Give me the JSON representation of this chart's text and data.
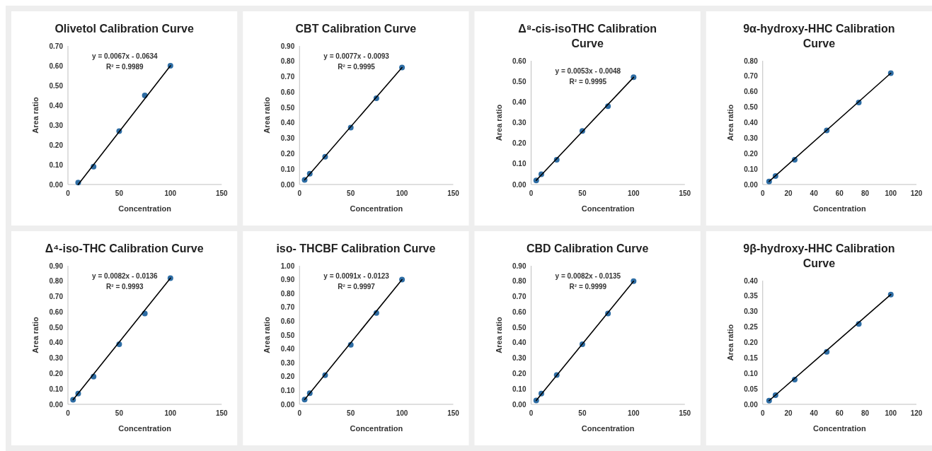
{
  "chart_data": [
    {
      "type": "scatter",
      "title": "Olivetol Calibration Curve",
      "xlabel": "Concentration",
      "ylabel": "Area ratio",
      "annotations": [
        "y = 0.0067x - 0.0634",
        "R² = 0.9989"
      ],
      "grid": false,
      "xlim": [
        0,
        150
      ],
      "xticks": [
        0,
        50,
        100,
        150
      ],
      "ylim": [
        0,
        0.7
      ],
      "yticks": [
        {
          "value": 0,
          "label": "0.00"
        },
        {
          "value": 0.1,
          "label": "0.10"
        },
        {
          "value": 0.2,
          "label": "0.20"
        },
        {
          "value": 0.3,
          "label": "0.30"
        },
        {
          "value": 0.4,
          "label": "0.40"
        },
        {
          "value": 0.5,
          "label": "0.50"
        },
        {
          "value": 0.6,
          "label": "0.60"
        },
        {
          "value": 0.7,
          "label": "0.70"
        }
      ],
      "series": [
        {
          "marker": "circle",
          "color": "#2e6da4",
          "x": [
            10,
            25,
            50,
            75,
            100
          ],
          "values": [
            0.01,
            0.09,
            0.27,
            0.45,
            0.6
          ]
        },
        {
          "type": "line",
          "marker": "none",
          "color": "#000000",
          "x": [
            10,
            100
          ],
          "values": [
            0.0,
            0.6
          ]
        }
      ]
    },
    {
      "type": "scatter",
      "title": "CBT Calibration Curve",
      "xlabel": "Concentration",
      "ylabel": "Area ratio",
      "annotations": [
        "y = 0.0077x - 0.0093",
        "R² = 0.9995"
      ],
      "grid": false,
      "xlim": [
        0,
        150
      ],
      "xticks": [
        0,
        50,
        100,
        150
      ],
      "ylim": [
        0,
        0.9
      ],
      "yticks": [
        {
          "value": 0,
          "label": "0.00"
        },
        {
          "value": 0.1,
          "label": "0.10"
        },
        {
          "value": 0.2,
          "label": "0.20"
        },
        {
          "value": 0.3,
          "label": "0.30"
        },
        {
          "value": 0.4,
          "label": "0.40"
        },
        {
          "value": 0.5,
          "label": "0.50"
        },
        {
          "value": 0.6,
          "label": "0.60"
        },
        {
          "value": 0.7,
          "label": "0.70"
        },
        {
          "value": 0.8,
          "label": "0.80"
        },
        {
          "value": 0.9,
          "label": "0.90"
        }
      ],
      "series": [
        {
          "marker": "circle",
          "color": "#2e6da4",
          "x": [
            5,
            10,
            25,
            50,
            75,
            100
          ],
          "values": [
            0.03,
            0.07,
            0.18,
            0.37,
            0.56,
            0.76
          ]
        },
        {
          "type": "line",
          "marker": "none",
          "color": "#000000",
          "x": [
            5,
            100
          ],
          "values": [
            0.03,
            0.76
          ]
        }
      ]
    },
    {
      "type": "scatter",
      "title": "Δ⁸-cis-isoTHC Calibration Curve",
      "xlabel": "Concentration",
      "ylabel": "Area ratio",
      "annotations": [
        "y = 0.0053x - 0.0048",
        "R² = 0.9995"
      ],
      "grid": false,
      "xlim": [
        0,
        150
      ],
      "xticks": [
        0,
        50,
        100,
        150
      ],
      "ylim": [
        0,
        0.6
      ],
      "yticks": [
        {
          "value": 0,
          "label": "0.00"
        },
        {
          "value": 0.1,
          "label": "0.10"
        },
        {
          "value": 0.2,
          "label": "0.20"
        },
        {
          "value": 0.3,
          "label": "0.30"
        },
        {
          "value": 0.4,
          "label": "0.40"
        },
        {
          "value": 0.5,
          "label": "0.50"
        },
        {
          "value": 0.6,
          "label": "0.60"
        }
      ],
      "series": [
        {
          "marker": "circle",
          "color": "#2e6da4",
          "x": [
            5,
            10,
            25,
            50,
            75,
            100
          ],
          "values": [
            0.02,
            0.05,
            0.12,
            0.26,
            0.38,
            0.52
          ]
        },
        {
          "type": "line",
          "marker": "none",
          "color": "#000000",
          "x": [
            5,
            100
          ],
          "values": [
            0.02,
            0.52
          ]
        }
      ]
    },
    {
      "type": "scatter",
      "title": "9α-hydroxy-HHC Calibration Curve",
      "xlabel": "Concentration",
      "ylabel": "Area ratio",
      "grid": false,
      "xlim": [
        0,
        120
      ],
      "xticks": [
        0,
        20,
        40,
        60,
        80,
        100,
        120
      ],
      "ylim": [
        0,
        0.8
      ],
      "yticks": [
        {
          "value": 0,
          "label": "0.00"
        },
        {
          "value": 0.1,
          "label": "0.10"
        },
        {
          "value": 0.2,
          "label": "0.20"
        },
        {
          "value": 0.3,
          "label": "0.30"
        },
        {
          "value": 0.4,
          "label": "0.40"
        },
        {
          "value": 0.5,
          "label": "0.50"
        },
        {
          "value": 0.6,
          "label": "0.60"
        },
        {
          "value": 0.7,
          "label": "0.70"
        },
        {
          "value": 0.8,
          "label": "0.80"
        }
      ],
      "series": [
        {
          "marker": "circle",
          "color": "#2e6da4",
          "x": [
            5,
            10,
            25,
            50,
            75,
            100
          ],
          "values": [
            0.02,
            0.055,
            0.16,
            0.35,
            0.53,
            0.72
          ]
        },
        {
          "type": "line",
          "marker": "none",
          "color": "#000000",
          "x": [
            5,
            100
          ],
          "values": [
            0.02,
            0.72
          ]
        }
      ]
    },
    {
      "type": "scatter",
      "title": "Δ⁴-iso-THC Calibration Curve",
      "xlabel": "Concentration",
      "ylabel": "Area ratio",
      "annotations": [
        "y = 0.0082x - 0.0136",
        "R² = 0.9993"
      ],
      "grid": false,
      "xlim": [
        0,
        150
      ],
      "xticks": [
        0,
        50,
        100,
        150
      ],
      "ylim": [
        0,
        0.9
      ],
      "yticks": [
        {
          "value": 0,
          "label": "0.00"
        },
        {
          "value": 0.1,
          "label": "0.10"
        },
        {
          "value": 0.2,
          "label": "0.20"
        },
        {
          "value": 0.3,
          "label": "0.30"
        },
        {
          "value": 0.4,
          "label": "0.40"
        },
        {
          "value": 0.5,
          "label": "0.50"
        },
        {
          "value": 0.6,
          "label": "0.60"
        },
        {
          "value": 0.7,
          "label": "0.70"
        },
        {
          "value": 0.8,
          "label": "0.80"
        },
        {
          "value": 0.9,
          "label": "0.90"
        }
      ],
      "series": [
        {
          "marker": "circle",
          "color": "#2e6da4",
          "x": [
            5,
            10,
            25,
            50,
            75,
            100
          ],
          "values": [
            0.03,
            0.07,
            0.18,
            0.39,
            0.59,
            0.82
          ]
        },
        {
          "type": "line",
          "marker": "none",
          "color": "#000000",
          "x": [
            5,
            100
          ],
          "values": [
            0.03,
            0.82
          ]
        }
      ]
    },
    {
      "type": "scatter",
      "title": "iso- THCBF Calibration Curve",
      "xlabel": "Concentration",
      "ylabel": "Area ratio",
      "annotations": [
        "y = 0.0091x - 0.0123",
        "R² = 0.9997"
      ],
      "grid": false,
      "xlim": [
        0,
        150
      ],
      "xticks": [
        0,
        50,
        100,
        150
      ],
      "ylim": [
        0,
        1.0
      ],
      "yticks": [
        {
          "value": 0,
          "label": "0.00"
        },
        {
          "value": 0.1,
          "label": "0.10"
        },
        {
          "value": 0.2,
          "label": "0.20"
        },
        {
          "value": 0.3,
          "label": "0.30"
        },
        {
          "value": 0.4,
          "label": "0.40"
        },
        {
          "value": 0.5,
          "label": "0.50"
        },
        {
          "value": 0.6,
          "label": "0.60"
        },
        {
          "value": 0.7,
          "label": "0.70"
        },
        {
          "value": 0.8,
          "label": "0.80"
        },
        {
          "value": 0.9,
          "label": "0.90"
        },
        {
          "value": 1.0,
          "label": "1.00"
        }
      ],
      "series": [
        {
          "marker": "circle",
          "color": "#2e6da4",
          "x": [
            5,
            10,
            25,
            50,
            75,
            100
          ],
          "values": [
            0.035,
            0.08,
            0.21,
            0.43,
            0.66,
            0.9
          ]
        },
        {
          "type": "line",
          "marker": "none",
          "color": "#000000",
          "x": [
            5,
            100
          ],
          "values": [
            0.035,
            0.9
          ]
        }
      ]
    },
    {
      "type": "scatter",
      "title": "CBD Calibration Curve",
      "xlabel": "Concentration",
      "ylabel": "Area ratio",
      "annotations": [
        "y = 0.0082x - 0.0135",
        "R² = 0.9999"
      ],
      "grid": false,
      "xlim": [
        0,
        150
      ],
      "xticks": [
        0,
        50,
        100,
        150
      ],
      "ylim": [
        0,
        0.9
      ],
      "yticks": [
        {
          "value": 0,
          "label": "0.00"
        },
        {
          "value": 0.1,
          "label": "0.10"
        },
        {
          "value": 0.2,
          "label": "0.20"
        },
        {
          "value": 0.3,
          "label": "0.30"
        },
        {
          "value": 0.4,
          "label": "0.40"
        },
        {
          "value": 0.5,
          "label": "0.50"
        },
        {
          "value": 0.6,
          "label": "0.60"
        },
        {
          "value": 0.7,
          "label": "0.70"
        },
        {
          "value": 0.8,
          "label": "0.80"
        },
        {
          "value": 0.9,
          "label": "0.90"
        }
      ],
      "series": [
        {
          "marker": "circle",
          "color": "#2e6da4",
          "x": [
            5,
            10,
            25,
            50,
            75,
            100
          ],
          "values": [
            0.025,
            0.07,
            0.19,
            0.39,
            0.59,
            0.8
          ]
        },
        {
          "type": "line",
          "marker": "none",
          "color": "#000000",
          "x": [
            5,
            100
          ],
          "values": [
            0.025,
            0.8
          ]
        }
      ]
    },
    {
      "type": "scatter",
      "title": "9β-hydroxy-HHC Calibration Curve",
      "xlabel": "Concentration",
      "ylabel": "Area ratio",
      "grid": false,
      "xlim": [
        0,
        120
      ],
      "xticks": [
        0,
        20,
        40,
        60,
        80,
        100,
        120
      ],
      "ylim": [
        0,
        0.4
      ],
      "yticks": [
        {
          "value": 0,
          "label": "0.00"
        },
        {
          "value": 0.05,
          "label": "0.05"
        },
        {
          "value": 0.1,
          "label": "0.10"
        },
        {
          "value": 0.15,
          "label": "0.15"
        },
        {
          "value": 0.2,
          "label": "0.20"
        },
        {
          "value": 0.25,
          "label": "0.25"
        },
        {
          "value": 0.3,
          "label": "0.30"
        },
        {
          "value": 0.35,
          "label": "0.35"
        },
        {
          "value": 0.4,
          "label": "0.40"
        }
      ],
      "series": [
        {
          "marker": "circle",
          "color": "#2e6da4",
          "x": [
            5,
            10,
            25,
            50,
            75,
            100
          ],
          "values": [
            0.012,
            0.03,
            0.08,
            0.17,
            0.26,
            0.355
          ]
        },
        {
          "type": "line",
          "marker": "none",
          "color": "#000000",
          "x": [
            5,
            100
          ],
          "values": [
            0.012,
            0.355
          ]
        }
      ]
    }
  ]
}
